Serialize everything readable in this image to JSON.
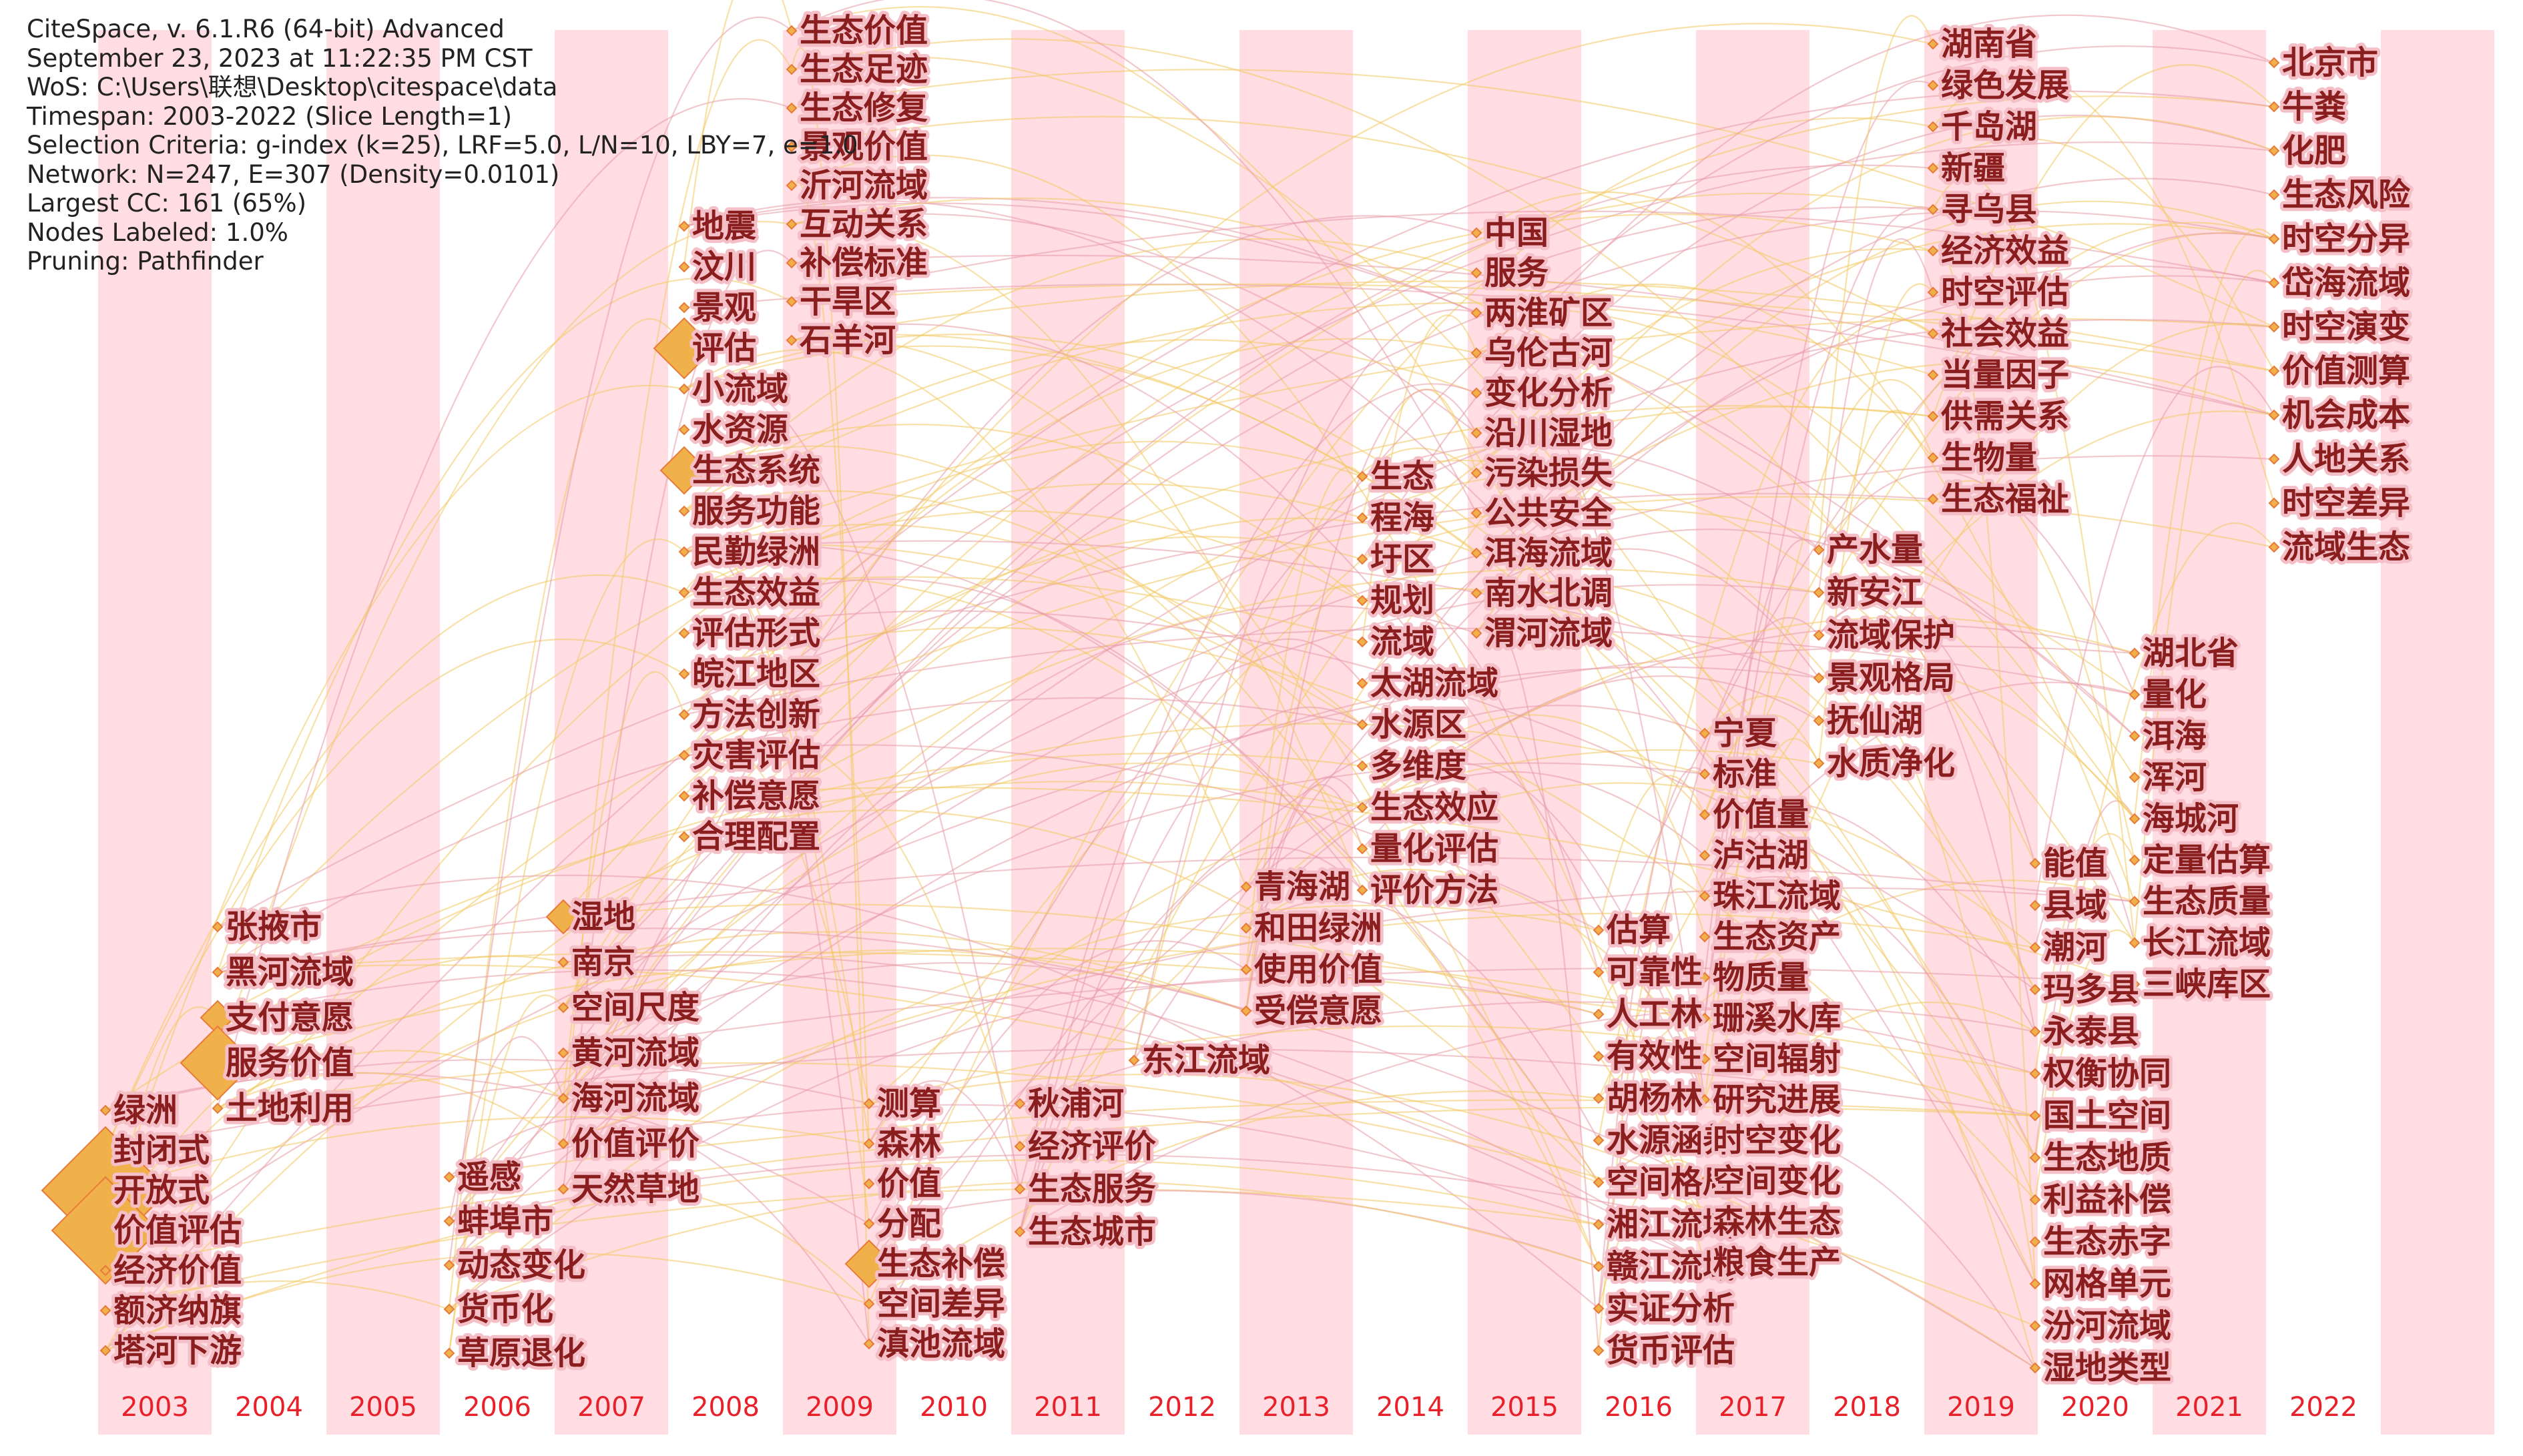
{
  "header_lines": [
    "CiteSpace, v. 6.1.R6 (64-bit) Advanced",
    "September 23, 2023 at 11:22:35 PM CST",
    "WoS: C:\\Users\\联想\\Desktop\\citespace\\data",
    "Timespan: 2003-2022 (Slice Length=1)",
    "Selection Criteria: g-index (k=25), LRF=5.0, L/N=10, LBY=7, e=1.0",
    "Network: N=247, E=307 (Density=0.0101)",
    "Largest CC: 161 (65%)",
    "Nodes Labeled: 1.0%",
    "Pruning: Pathfinder"
  ],
  "years": [
    "2003",
    "2004",
    "2005",
    "2006",
    "2007",
    "2008",
    "2009",
    "2010",
    "2011",
    "2012",
    "2013",
    "2014",
    "2015",
    "2016",
    "2017",
    "2018",
    "2019",
    "2020",
    "2021",
    "2022"
  ],
  "colors": {
    "stripe": "#ffdde3",
    "year_text": "#e8202a",
    "keyword_text": "#8a1d1d",
    "link_a": "#f2c860",
    "link_b": "#e89aa8"
  },
  "keywords": [
    {
      "year": "2003",
      "items": [
        "绿洲",
        "封闭式",
        "开放式",
        "价值评估",
        "经济价值",
        "额济纳旗",
        "塔河下游"
      ]
    },
    {
      "year": "2004",
      "items": [
        "张掖市",
        "黑河流域",
        "支付意愿",
        "服务价值",
        "土地利用"
      ]
    },
    {
      "year": "2006",
      "items": [
        "遥感",
        "蚌埠市",
        "动态变化",
        "货币化",
        "草原退化"
      ]
    },
    {
      "year": "2007",
      "items": [
        "湿地",
        "南京",
        "空间尺度",
        "黄河流域",
        "海河流域",
        "价值评价",
        "天然草地"
      ]
    },
    {
      "year": "2008",
      "items": [
        "地震",
        "汶川",
        "景观",
        "评估",
        "小流域",
        "水资源",
        "生态系统",
        "服务功能",
        "民勤绿洲",
        "生态效益",
        "评估形式",
        "皖江地区",
        "方法创新",
        "灾害评估",
        "补偿意愿",
        "合理配置"
      ]
    },
    {
      "year": "2009",
      "items": [
        "生态价值",
        "生态足迹",
        "生态修复",
        "景观价值",
        "沂河流域",
        "互动关系",
        "补偿标准",
        "干旱区",
        "石羊河"
      ]
    },
    {
      "year": "2010",
      "items": [
        "测算",
        "森林",
        "价值",
        "分配",
        "生态补偿",
        "空间差异",
        "滇池流域"
      ]
    },
    {
      "year": "2011",
      "items": [
        "秋浦河",
        "经济评价",
        "生态服务",
        "生态城市"
      ]
    },
    {
      "year": "2012",
      "items": [
        "东江流域"
      ]
    },
    {
      "year": "2013",
      "items": [
        "青海湖",
        "和田绿洲",
        "使用价值",
        "受偿意愿"
      ]
    },
    {
      "year": "2014",
      "items": [
        "生态",
        "程海",
        "圩区",
        "规划",
        "流域",
        "太湖流域",
        "水源区",
        "多维度",
        "生态效应",
        "量化评估",
        "评价方法"
      ]
    },
    {
      "year": "2015",
      "items": [
        "中国",
        "服务",
        "两淮矿区",
        "乌伦古河",
        "变化分析",
        "沿川湿地",
        "污染损失",
        "公共安全",
        "洱海流域",
        "南水北调",
        "渭河流域"
      ]
    },
    {
      "year": "2016",
      "items": [
        "估算",
        "可靠性",
        "人工林",
        "有效性",
        "胡杨林",
        "水源涵养",
        "空间格局",
        "湘江流域",
        "赣江流域",
        "实证分析",
        "货币评估"
      ]
    },
    {
      "year": "2017",
      "items": [
        "宁夏",
        "标准",
        "价值量",
        "泸沽湖",
        "珠江流域",
        "生态资产",
        "物质量",
        "珊溪水库",
        "空间辐射",
        "研究进展",
        "时空变化",
        "空间变化",
        "森林生态",
        "粮食生产"
      ]
    },
    {
      "year": "2018",
      "items": [
        "产水量",
        "新安江",
        "流域保护",
        "景观格局",
        "抚仙湖",
        "水质净化"
      ]
    },
    {
      "year": "2019",
      "items": [
        "湖南省",
        "绿色发展",
        "千岛湖",
        "新疆",
        "寻乌县",
        "经济效益",
        "时空评估",
        "社会效益",
        "当量因子",
        "供需关系",
        "生物量",
        "生态福祉"
      ]
    },
    {
      "year": "2020",
      "items": [
        "能值",
        "县域",
        "潮河",
        "玛多县",
        "永泰县",
        "权衡协同",
        "国土空间",
        "生态地质",
        "利益补偿",
        "生态赤字",
        "网格单元",
        "汾河流域",
        "湿地类型"
      ]
    },
    {
      "year": "2021",
      "items": [
        "湖北省",
        "量化",
        "洱海",
        "浑河",
        "海城河",
        "定量估算",
        "生态质量",
        "长江流域",
        "三峡库区"
      ]
    },
    {
      "year": "2022",
      "items": [
        "北京市",
        "牛粪",
        "化肥",
        "生态风险",
        "时空分异",
        "岱海流域",
        "时空演变",
        "价值测算",
        "机会成本",
        "人地关系",
        "时空差异",
        "流域生态"
      ]
    }
  ]
}
